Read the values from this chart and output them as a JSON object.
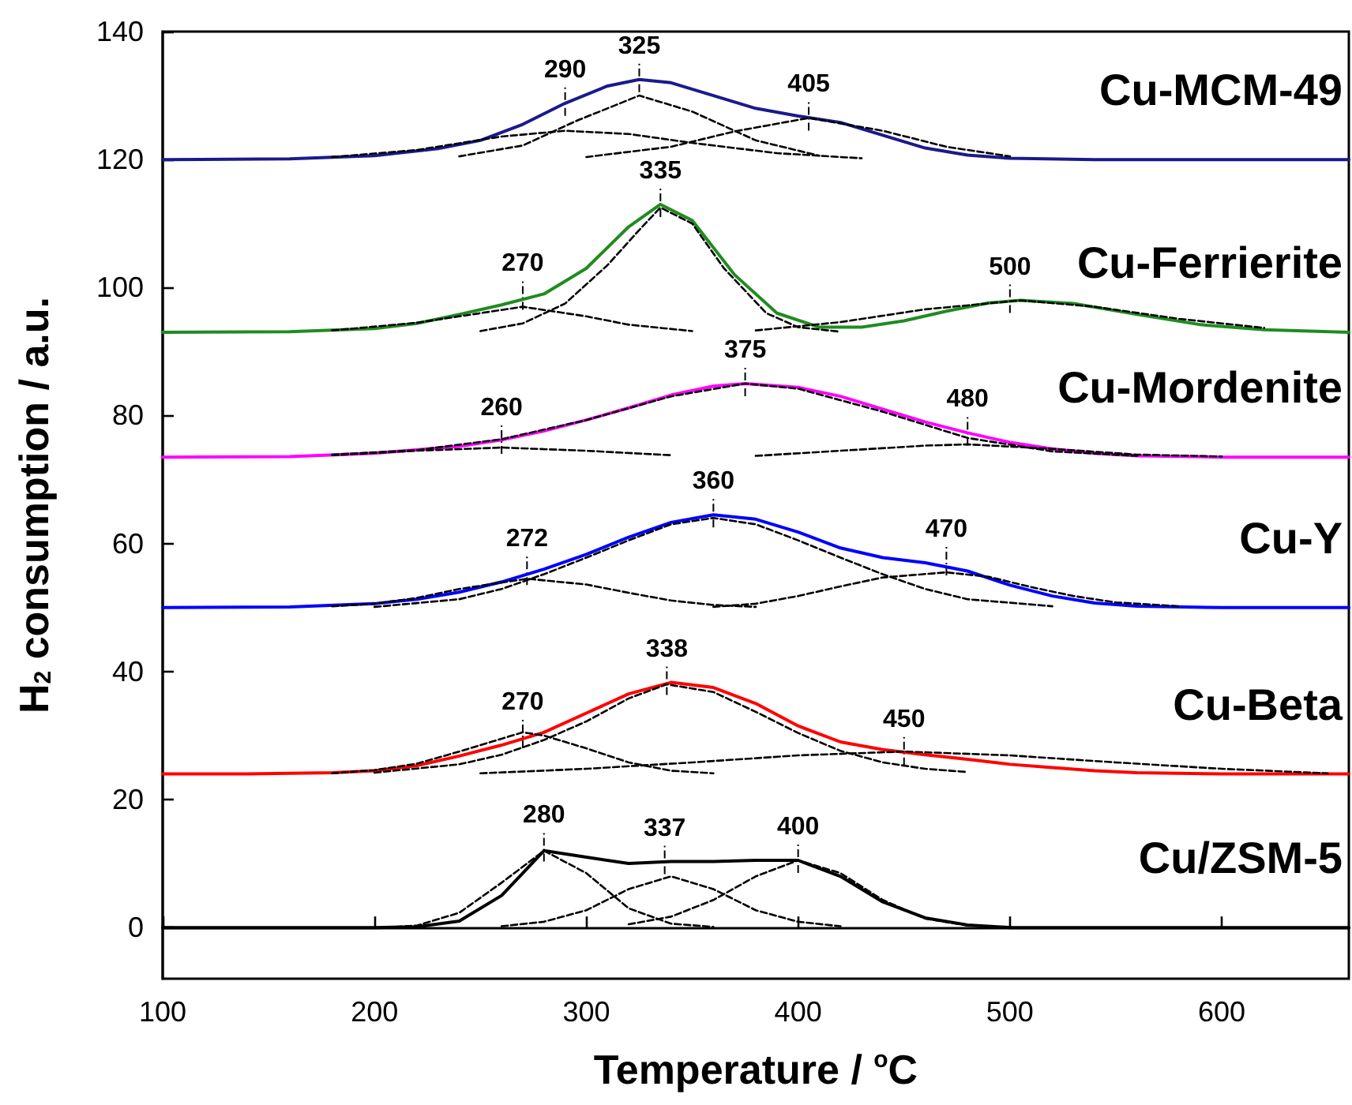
{
  "chart_data": {
    "type": "line",
    "xlabel": "Temperature / $^{o}$C",
    "ylabel": "H$_{2}$ consumption / a.u.",
    "xlim": [
      100,
      660
    ],
    "xticks": [
      100,
      200,
      300,
      400,
      500,
      600
    ],
    "ylim": [
      -8,
      140
    ],
    "yticks": [
      0,
      20,
      40,
      60,
      80,
      100,
      120,
      140
    ],
    "marker": "none",
    "line_style": "solid",
    "series": [
      {
        "name": "Cu-MCM-49",
        "color": "#1a1a8c",
        "x": [
          100,
          160,
          200,
          230,
          250,
          270,
          290,
          310,
          325,
          340,
          360,
          380,
          400,
          420,
          440,
          460,
          480,
          500,
          540,
          660
        ],
        "values": [
          120,
          120.1,
          120.6,
          121.7,
          123,
          125.5,
          128.8,
          131.5,
          132.5,
          132,
          130,
          128,
          126.8,
          125.8,
          123.8,
          121.8,
          120.7,
          120.2,
          120,
          120
        ]
      },
      {
        "color": "#000000",
        "line_style": "dashed",
        "x": [
          180,
          220,
          260,
          290,
          320,
          350,
          390,
          430
        ],
        "values": [
          120.4,
          121.5,
          123.6,
          124.5,
          124,
          122.6,
          121,
          120.2
        ]
      },
      {
        "color": "#000000",
        "line_style": "dashed",
        "x": [
          240,
          270,
          295,
          325,
          350,
          380,
          410
        ],
        "values": [
          120.5,
          122.2,
          126,
          130,
          127.5,
          123,
          120.6
        ]
      },
      {
        "color": "#000000",
        "line_style": "dashed",
        "x": [
          300,
          340,
          370,
          405,
          440,
          470,
          500
        ],
        "values": [
          120.4,
          122,
          124.4,
          126.5,
          124.5,
          122,
          120.5
        ]
      },
      {
        "name": "Cu-Ferrierite",
        "color": "#1f8c1f",
        "x": [
          100,
          160,
          200,
          220,
          240,
          260,
          280,
          300,
          320,
          335,
          350,
          370,
          390,
          410,
          430,
          450,
          470,
          490,
          505,
          530,
          560,
          590,
          620,
          660
        ],
        "values": [
          93,
          93.1,
          93.6,
          94.4,
          95.8,
          97.3,
          99,
          103,
          109.5,
          113,
          110.5,
          102,
          96,
          93.8,
          93.8,
          94.8,
          96.3,
          97.6,
          98,
          97.5,
          95.8,
          94.2,
          93.4,
          93
        ]
      },
      {
        "color": "#000000",
        "line_style": "dashed",
        "x": [
          180,
          220,
          240,
          270,
          300,
          320,
          350
        ],
        "values": [
          93.3,
          94.5,
          95.5,
          97,
          95.5,
          94.2,
          93.2
        ]
      },
      {
        "color": "#000000",
        "line_style": "dashed",
        "x": [
          250,
          270,
          290,
          310,
          325,
          335,
          350,
          365,
          385,
          400,
          420
        ],
        "values": [
          93.2,
          94.4,
          97.5,
          103.5,
          109,
          112.5,
          110,
          103,
          96,
          93.8,
          93.1
        ]
      },
      {
        "color": "#000000",
        "line_style": "dashed",
        "x": [
          380,
          420,
          460,
          505,
          540,
          580,
          620
        ],
        "values": [
          93.3,
          94.6,
          96.6,
          98,
          97,
          95.1,
          93.7
        ]
      },
      {
        "name": "Cu-Mordenite",
        "color": "#ff00ff",
        "x": [
          100,
          160,
          200,
          240,
          260,
          280,
          300,
          320,
          340,
          360,
          375,
          400,
          420,
          440,
          460,
          480,
          500,
          520,
          540,
          560,
          600,
          660
        ],
        "values": [
          73.5,
          73.6,
          74.1,
          75.2,
          76.2,
          77.6,
          79.3,
          81.2,
          83.2,
          84.6,
          85,
          84.4,
          83,
          81,
          79,
          77.3,
          75.8,
          74.8,
          74.1,
          73.7,
          73.5,
          73.5
        ]
      },
      {
        "color": "#000000",
        "line_style": "dashed",
        "x": [
          180,
          220,
          260,
          300,
          340
        ],
        "values": [
          73.8,
          74.5,
          75,
          74.5,
          73.8
        ]
      },
      {
        "color": "#000000",
        "line_style": "dashed",
        "x": [
          180,
          220,
          260,
          300,
          340,
          375,
          400,
          440,
          480,
          520,
          560
        ],
        "values": [
          73.9,
          74.6,
          76.3,
          79.3,
          83,
          85,
          84.2,
          80.6,
          76.5,
          74.4,
          73.7
        ]
      },
      {
        "color": "#000000",
        "line_style": "dashed",
        "x": [
          380,
          420,
          460,
          480,
          520,
          560,
          600
        ],
        "values": [
          73.7,
          74.5,
          75.3,
          75.5,
          74.8,
          73.9,
          73.6
        ]
      },
      {
        "name": "Cu-Y",
        "color": "#0000ff",
        "x": [
          100,
          160,
          200,
          220,
          240,
          260,
          280,
          300,
          320,
          340,
          360,
          380,
          400,
          420,
          440,
          460,
          480,
          500,
          520,
          540,
          560,
          600,
          660
        ],
        "values": [
          50,
          50.1,
          50.6,
          51.3,
          52.4,
          54,
          56,
          58.3,
          61,
          63.3,
          64.5,
          63.8,
          61.8,
          59.3,
          57.8,
          57,
          55.7,
          53.5,
          51.8,
          50.7,
          50.2,
          50,
          50
        ]
      },
      {
        "color": "#000000",
        "line_style": "dashed",
        "x": [
          180,
          200,
          220,
          240,
          272,
          300,
          320,
          340,
          360,
          380
        ],
        "values": [
          50.2,
          50.6,
          51.5,
          52.9,
          54.5,
          53.6,
          52.3,
          51.1,
          50.4,
          50.1
        ]
      },
      {
        "color": "#000000",
        "line_style": "dashed",
        "x": [
          200,
          240,
          260,
          280,
          300,
          320,
          340,
          360,
          380,
          400,
          420,
          440,
          460,
          480,
          520
        ],
        "values": [
          50.1,
          51.3,
          52.9,
          55.2,
          57.8,
          60.5,
          63,
          64,
          63,
          60.5,
          57.8,
          55.2,
          52.9,
          51.3,
          50.2
        ]
      },
      {
        "color": "#000000",
        "line_style": "dashed",
        "x": [
          360,
          380,
          400,
          420,
          440,
          470,
          490,
          510,
          530,
          550,
          580
        ],
        "values": [
          50.1,
          50.6,
          51.8,
          53.3,
          54.7,
          55.5,
          54.8,
          53.2,
          51.8,
          50.8,
          50.2
        ]
      },
      {
        "name": "Cu-Beta",
        "color": "#ff0000",
        "x": [
          100,
          140,
          180,
          200,
          220,
          240,
          260,
          280,
          300,
          320,
          340,
          360,
          380,
          400,
          420,
          440,
          460,
          480,
          500,
          520,
          540,
          560,
          600,
          660
        ],
        "values": [
          24,
          24,
          24.2,
          24.5,
          25.3,
          26.8,
          28.5,
          30.5,
          33.5,
          36.5,
          38.3,
          37.5,
          35,
          31.5,
          29,
          27.8,
          27,
          26.3,
          25.5,
          25,
          24.5,
          24.2,
          24,
          24
        ]
      },
      {
        "color": "#000000",
        "line_style": "dashed",
        "x": [
          180,
          200,
          220,
          240,
          260,
          270,
          280,
          300,
          320,
          340,
          360
        ],
        "values": [
          24.1,
          24.6,
          25.6,
          27.5,
          29.5,
          30.5,
          30,
          28,
          25.8,
          24.5,
          24.1
        ]
      },
      {
        "color": "#000000",
        "line_style": "dashed",
        "x": [
          200,
          240,
          260,
          280,
          300,
          320,
          338,
          360,
          380,
          400,
          420,
          440,
          460,
          480
        ],
        "values": [
          24.2,
          25.5,
          27,
          29.3,
          32.2,
          35.8,
          38,
          36.8,
          33.7,
          30.4,
          27.6,
          25.8,
          24.8,
          24.3
        ]
      },
      {
        "color": "#000000",
        "line_style": "dashed",
        "x": [
          250,
          300,
          350,
          400,
          450,
          500,
          550,
          600,
          650
        ],
        "values": [
          24.1,
          24.8,
          25.8,
          26.9,
          27.5,
          26.9,
          25.8,
          24.8,
          24.1
        ]
      },
      {
        "name": "Cu/ZSM-5",
        "color": "#000000",
        "x": [
          100,
          200,
          220,
          240,
          260,
          280,
          300,
          320,
          340,
          360,
          380,
          400,
          420,
          440,
          460,
          480,
          500,
          660
        ],
        "values": [
          0,
          0,
          0.1,
          1,
          5,
          12,
          11,
          10,
          10.3,
          10.3,
          10.5,
          10.5,
          8,
          4,
          1.5,
          0.4,
          0,
          0
        ]
      },
      {
        "color": "#000000",
        "line_style": "dashed",
        "x": [
          210,
          220,
          240,
          260,
          280,
          300,
          320,
          340,
          360
        ],
        "values": [
          0.1,
          0.3,
          2.3,
          7,
          12,
          8.5,
          3,
          0.6,
          0.1
        ]
      },
      {
        "color": "#000000",
        "line_style": "dashed",
        "x": [
          260,
          280,
          300,
          320,
          340,
          360,
          380,
          400,
          420
        ],
        "values": [
          0.2,
          0.9,
          2.7,
          6,
          8,
          6,
          2.7,
          0.9,
          0.2
        ]
      },
      {
        "color": "#000000",
        "line_style": "dashed",
        "x": [
          320,
          340,
          360,
          380,
          400,
          420,
          440,
          460,
          480
        ],
        "values": [
          0.5,
          1.7,
          4.3,
          8,
          10.5,
          8.5,
          4.3,
          1.4,
          0.3
        ]
      }
    ],
    "annotations": [
      {
        "text": "290",
        "x": 290,
        "y": 128.8
      },
      {
        "text": "325",
        "x": 325,
        "y": 132.5
      },
      {
        "text": "405",
        "x": 405,
        "y": 126.5
      },
      {
        "text": "270",
        "x": 270,
        "y": 98.5
      },
      {
        "text": "335",
        "x": 335,
        "y": 113
      },
      {
        "text": "500",
        "x": 500,
        "y": 98
      },
      {
        "text": "260",
        "x": 260,
        "y": 76
      },
      {
        "text": "375",
        "x": 375,
        "y": 85
      },
      {
        "text": "480",
        "x": 480,
        "y": 77.3
      },
      {
        "text": "272",
        "x": 272,
        "y": 55.5
      },
      {
        "text": "360",
        "x": 360,
        "y": 64.5
      },
      {
        "text": "470",
        "x": 470,
        "y": 57
      },
      {
        "text": "270",
        "x": 270,
        "y": 30
      },
      {
        "text": "338",
        "x": 338,
        "y": 38.3
      },
      {
        "text": "450",
        "x": 450,
        "y": 27.3
      },
      {
        "text": "280",
        "x": 280,
        "y": 12.3
      },
      {
        "text": "337",
        "x": 337,
        "y": 10.3
      },
      {
        "text": "400",
        "x": 400,
        "y": 10.5
      }
    ]
  }
}
